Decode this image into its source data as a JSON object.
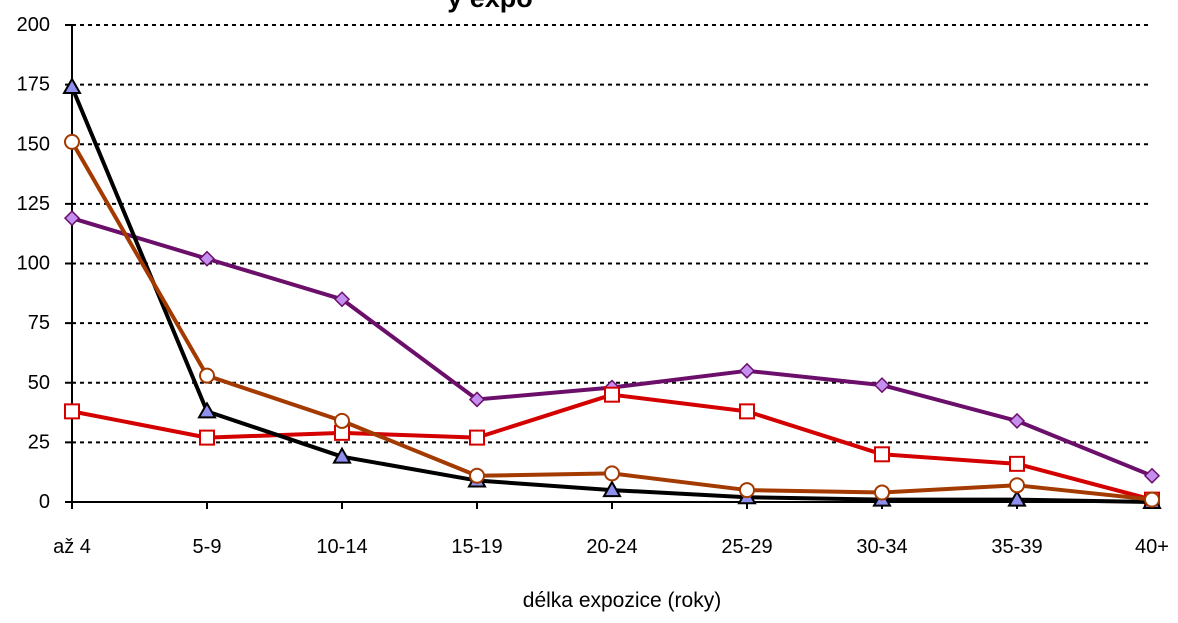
{
  "chart_data": {
    "type": "line",
    "title": "y expo",
    "xlabel": "délka expozice (roky)",
    "ylabel": "",
    "ylim": [
      0,
      200
    ],
    "yticks": [
      0,
      25,
      50,
      75,
      100,
      125,
      150,
      175,
      200
    ],
    "grid": true,
    "categories": [
      "až 4",
      "5-9",
      "10-14",
      "15-19",
      "20-24",
      "25-29",
      "30-34",
      "35-39",
      "40+"
    ],
    "series": [
      {
        "color": "#6b0f6b",
        "marker": "diamond",
        "marker_fill": "#c58fef",
        "values": [
          119,
          102,
          85,
          43,
          48,
          55,
          49,
          34,
          11
        ]
      },
      {
        "color": "#d40000",
        "marker": "square",
        "marker_fill": "#ffffff",
        "values": [
          38,
          27,
          29,
          27,
          45,
          38,
          20,
          16,
          1
        ]
      },
      {
        "color": "#000000",
        "marker": "triangle",
        "marker_fill": "#8f8fef",
        "values": [
          174,
          38,
          19,
          9,
          5,
          2,
          1,
          1,
          0
        ]
      },
      {
        "color": "#a33a00",
        "marker": "circle",
        "marker_fill": "#ffffff",
        "values": [
          151,
          53,
          34,
          11,
          12,
          5,
          4,
          7,
          1
        ]
      }
    ]
  }
}
